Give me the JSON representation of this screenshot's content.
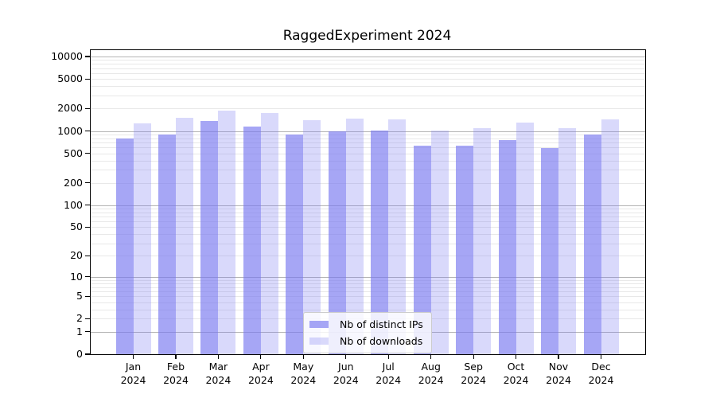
{
  "chart_data": {
    "type": "bar",
    "title": "RaggedExperiment 2024",
    "xlabel": "",
    "ylabel": "",
    "yscale": "log10(1+v)",
    "ylim": [
      0,
      10000
    ],
    "grid": "on",
    "legend_position": "bottom-center",
    "categories": [
      "Jan",
      "Feb",
      "Mar",
      "Apr",
      "May",
      "Jun",
      "Jul",
      "Aug",
      "Sep",
      "Oct",
      "Nov",
      "Dec"
    ],
    "category_year": "2024",
    "ytick_values": [
      10000,
      5000,
      2000,
      1000,
      500,
      200,
      100,
      50,
      20,
      10,
      5,
      2,
      1,
      0
    ],
    "series": [
      {
        "name": "Nb of distinct IPs",
        "color": "rgba(120,120,240,0.66)",
        "values": [
          800,
          900,
          1360,
          1150,
          900,
          980,
          1020,
          640,
          630,
          760,
          590,
          900
        ]
      },
      {
        "name": "Nb of downloads",
        "color": "rgba(120,120,240,0.28)",
        "values": [
          1250,
          1510,
          1860,
          1730,
          1390,
          1450,
          1440,
          1020,
          1100,
          1310,
          1090,
          1420
        ]
      }
    ],
    "grid_colors": {
      "major": "#b4b4b4",
      "minor": "#e8e8e8"
    }
  }
}
